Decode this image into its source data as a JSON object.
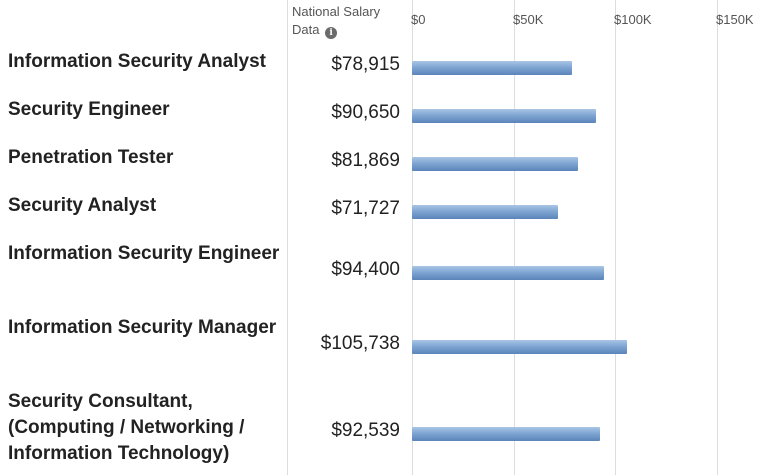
{
  "header": {
    "line1": "National Salary",
    "line2": "Data",
    "info_icon": "info-icon"
  },
  "chart_data": {
    "type": "bar",
    "orientation": "horizontal",
    "title": "",
    "xlabel": "",
    "ylabel": "",
    "xlim": [
      0,
      150000
    ],
    "ticks": [
      {
        "value": 0,
        "label": "$0"
      },
      {
        "value": 50000,
        "label": "$50K"
      },
      {
        "value": 100000,
        "label": "$100K"
      },
      {
        "value": 150000,
        "label": "$150K"
      }
    ],
    "grid": true,
    "categories": [
      "Information Security Analyst",
      "Security Engineer",
      "Penetration Tester",
      "Security Analyst",
      "Information Security Engineer",
      "Information Security Manager",
      "Security Consultant, (Computing / Networking / Information Technology)"
    ],
    "values": [
      78915,
      90650,
      81869,
      71727,
      94400,
      105738,
      92539
    ],
    "value_labels": [
      "$78,915",
      "$90,650",
      "$81,869",
      "$71,727",
      "$94,400",
      "$105,738",
      "$92,539"
    ],
    "bar_color": "#7fa6d2"
  }
}
